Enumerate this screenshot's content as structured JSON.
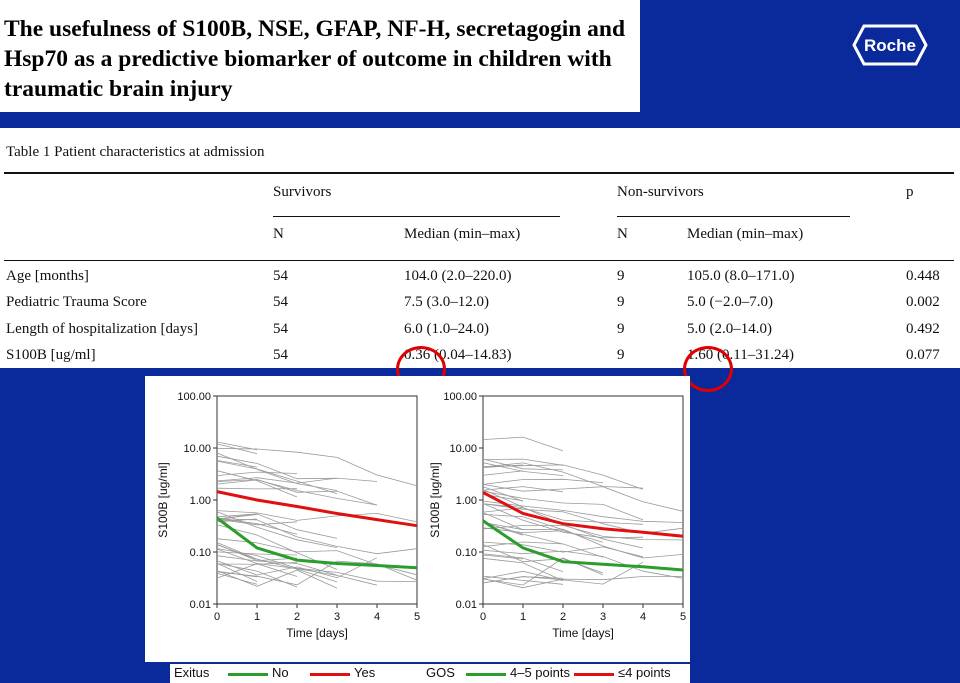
{
  "title": "The usefulness of S100B, NSE, GFAP, NF-H, secretagogin and Hsp70 as a predictive biomarker of outcome in children with traumatic brain injury",
  "logo": {
    "text": "Roche",
    "icon": "roche-hexagon-logo"
  },
  "table": {
    "caption": "Table 1  Patient characteristics at admission",
    "groups": [
      "Survivors",
      "Non-survivors",
      "p"
    ],
    "subheaders": [
      "N",
      "Median (min–max)",
      "N",
      "Median (min–max)"
    ],
    "rows": [
      {
        "label": "Age [months]",
        "s_n": "54",
        "s_median": "104.0 (2.0–220.0)",
        "ns_n": "9",
        "ns_median": "105.0 (8.0–171.0)",
        "p": "0.448"
      },
      {
        "label": "Pediatric Trauma Score",
        "s_n": "54",
        "s_median": "7.5 (3.0–12.0)",
        "ns_n": "9",
        "ns_median": "5.0 (−2.0–7.0)",
        "p": "0.002"
      },
      {
        "label": "Length of hospitalization [days]",
        "s_n": "54",
        "s_median": "6.0 (1.0–24.0)",
        "ns_n": "9",
        "ns_median": "5.0 (2.0–14.0)",
        "p": "0.492"
      },
      {
        "label": "S100B [ug/ml]",
        "s_n": "54",
        "s_median": "0.36 (0.04–14.83)",
        "ns_n": "9",
        "ns_median": "1.60 (0.11–31.24)",
        "p": "0.077"
      }
    ],
    "highlight_color": "#e00000"
  },
  "charts": {
    "ylabel": "S100B [ug/ml]",
    "xlabel": "Time [days]",
    "y_ticks": [
      "100.00",
      "10.00",
      "1.00",
      "0.10",
      "0.01"
    ],
    "x_ticks": [
      "0",
      "1",
      "2",
      "3",
      "4",
      "5"
    ]
  },
  "chart_data": [
    {
      "type": "line",
      "ylabel": "S100B [ug/ml]",
      "xlabel": "Time [days]",
      "y_scale": "log",
      "ylim": [
        0.01,
        100
      ],
      "xlim": [
        0,
        5
      ],
      "series": [
        {
          "name": "No",
          "color": "#2a9d2a",
          "x": [
            0,
            1,
            2,
            3,
            4,
            5
          ],
          "values": [
            0.45,
            0.12,
            0.07,
            0.06,
            0.055,
            0.05
          ]
        },
        {
          "name": "Yes",
          "color": "#e01010",
          "x": [
            0,
            1,
            2,
            3,
            4,
            5
          ],
          "values": [
            1.45,
            1.0,
            0.75,
            0.55,
            0.42,
            0.32
          ]
        }
      ]
    },
    {
      "type": "line",
      "ylabel": "S100B [ug/ml]",
      "xlabel": "Time [days]",
      "y_scale": "log",
      "ylim": [
        0.01,
        100
      ],
      "xlim": [
        0,
        5
      ],
      "series": [
        {
          "name": "4–5 points",
          "color": "#2a9d2a",
          "x": [
            0,
            1,
            2,
            3,
            4,
            5
          ],
          "values": [
            0.4,
            0.12,
            0.065,
            0.058,
            0.052,
            0.045
          ]
        },
        {
          "name": "≤4 points",
          "color": "#e01010",
          "x": [
            0,
            1,
            2,
            3,
            4,
            5
          ],
          "values": [
            1.4,
            0.55,
            0.35,
            0.28,
            0.24,
            0.2
          ]
        }
      ]
    }
  ],
  "legend": {
    "exitus_label": "Exitus",
    "no_label": "No",
    "yes_label": "Yes",
    "gos_label": "GOS",
    "gos_good_label": "4–5 points",
    "gos_poor_label": "≤4 points",
    "green": "#2a9d2a",
    "red": "#e01010"
  }
}
